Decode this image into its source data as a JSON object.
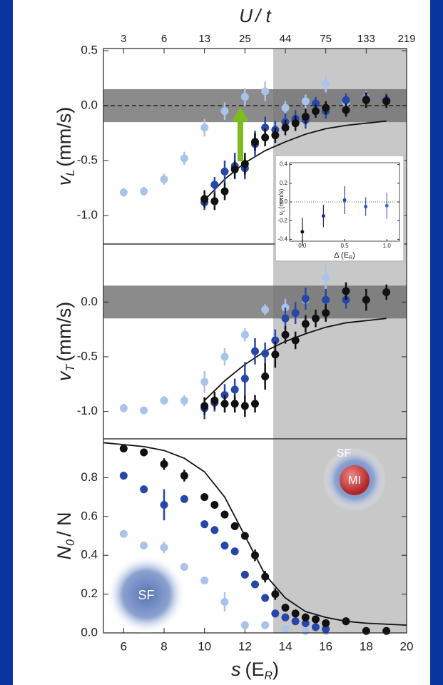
{
  "chart_data": [
    {
      "type": "scatter",
      "x2_label": "U",
      "x2_label_end": "/ t",
      "x2ticks": [
        {
          "value": 6,
          "label": "3"
        },
        {
          "value": 8,
          "label": "6"
        },
        {
          "value": 10,
          "label": "13"
        },
        {
          "value": 12,
          "label": "25"
        },
        {
          "value": 14,
          "label": "44"
        },
        {
          "value": 16,
          "label": "75"
        },
        {
          "value": 18,
          "label": "133"
        },
        {
          "value": 20,
          "label": "219"
        }
      ],
      "y_label": [
        "v",
        "L",
        "(mm/s)"
      ],
      "xlim": [
        5,
        20
      ],
      "ylim": [
        -1.26,
        0.52
      ],
      "yticks": [
        0.5,
        {
          "value": 0,
          "label": "0.0"
        },
        -0.5,
        {
          "value": -1,
          "label": "-1.0"
        }
      ],
      "shade_from": 13.4,
      "band": [
        -0.15,
        0.15
      ],
      "reference": 0,
      "series": [
        {
          "color": "#a9c3ea",
          "x": [
            6,
            7,
            8,
            9,
            10,
            11,
            12,
            13,
            14,
            15,
            16,
            17,
            18
          ],
          "values": [
            -0.79,
            -0.78,
            -0.67,
            -0.48,
            -0.2,
            -0.05,
            0.08,
            0.13,
            -0.02,
            0.04,
            0.2,
            0.03,
            0.07
          ],
          "errors": [
            0.04,
            0.04,
            0.05,
            0.06,
            0.08,
            0.08,
            0.08,
            0.09,
            0.06,
            0.06,
            0.08,
            0.05,
            0.06
          ]
        },
        {
          "color": "#2747a8",
          "x": [
            10,
            10.5,
            11,
            11.5,
            12,
            12.5,
            13,
            13.5,
            14,
            14.5,
            15,
            15.5,
            16,
            17,
            18,
            19
          ],
          "values": [
            -0.88,
            -0.72,
            -0.6,
            -0.55,
            -0.57,
            -0.35,
            -0.2,
            -0.22,
            -0.15,
            -0.12,
            -0.13,
            0.02,
            -0.05,
            0.05,
            0.06,
            0.05
          ],
          "errors": [
            0.07,
            0.07,
            0.1,
            0.12,
            0.1,
            0.12,
            0.1,
            0.08,
            0.08,
            0.08,
            0.08,
            0.06,
            0.07,
            0.06,
            0.06,
            0.06
          ]
        },
        {
          "color": "#111111",
          "x": [
            10,
            10.5,
            11,
            11.5,
            12,
            12.5,
            13,
            13.5,
            14,
            14.5,
            15,
            15.5,
            16,
            17,
            18,
            19
          ],
          "values": [
            -0.85,
            -0.87,
            -0.78,
            -0.58,
            -0.53,
            -0.33,
            -0.29,
            -0.27,
            -0.2,
            -0.16,
            -0.1,
            -0.05,
            -0.02,
            -0.04,
            0.05,
            0.04
          ],
          "errors": [
            0.08,
            0.08,
            0.08,
            0.08,
            0.1,
            0.08,
            0.08,
            0.07,
            0.07,
            0.07,
            0.07,
            0.06,
            0.06,
            0.06,
            0.07,
            0.06
          ]
        }
      ],
      "curve": {
        "x": [
          10,
          11,
          12,
          13,
          14,
          15,
          16,
          17,
          18,
          19
        ],
        "values": [
          -0.86,
          -0.67,
          -0.52,
          -0.41,
          -0.33,
          -0.26,
          -0.21,
          -0.18,
          -0.16,
          -0.14
        ]
      }
    },
    {
      "type": "scatter",
      "y_label": [
        "v",
        "T",
        "(mm/s)"
      ],
      "xlim": [
        5,
        20
      ],
      "ylim": [
        -1.25,
        0.53
      ],
      "yticks": [
        {
          "value": 0,
          "label": "0.0"
        },
        -0.5,
        {
          "value": -1,
          "label": "-1.0"
        }
      ],
      "shade_from": 13.4,
      "band": [
        -0.15,
        0.15
      ],
      "series": [
        {
          "color": "#a9c3ea",
          "x": [
            6,
            7,
            8,
            9,
            10,
            11,
            12,
            13,
            14,
            15,
            16,
            17
          ],
          "values": [
            -0.97,
            -0.99,
            -0.9,
            -0.9,
            -0.73,
            -0.5,
            -0.3,
            -0.07,
            -0.05,
            0.02,
            0.22,
            0.1
          ],
          "errors": [
            0.04,
            0.03,
            0.04,
            0.05,
            0.1,
            0.08,
            0.06,
            0.05,
            0.08,
            0.08,
            0.12,
            0.08
          ]
        },
        {
          "color": "#2747a8",
          "x": [
            10,
            10.5,
            11,
            11.5,
            12,
            12.5,
            13,
            13.5,
            14,
            14.5,
            15,
            16,
            17
          ],
          "values": [
            -0.97,
            -0.92,
            -0.85,
            -0.8,
            -0.7,
            -0.45,
            -0.47,
            -0.35,
            -0.15,
            -0.1,
            0.03,
            0.02,
            0.02
          ],
          "errors": [
            0.1,
            0.08,
            0.1,
            0.1,
            0.15,
            0.12,
            0.1,
            0.1,
            0.1,
            0.1,
            0.1,
            0.1,
            0.08
          ]
        },
        {
          "color": "#111111",
          "x": [
            10,
            10.5,
            11,
            11.5,
            12,
            12.5,
            13,
            13.5,
            14,
            14.5,
            15,
            15.5,
            16,
            17,
            18,
            19
          ],
          "values": [
            -0.95,
            -0.9,
            -0.93,
            -0.93,
            -0.95,
            -0.93,
            -0.68,
            -0.48,
            -0.3,
            -0.35,
            -0.2,
            -0.15,
            -0.1,
            0.1,
            0.02,
            0.09
          ],
          "errors": [
            0.08,
            0.08,
            0.08,
            0.08,
            0.1,
            0.08,
            0.12,
            0.12,
            0.08,
            0.08,
            0.08,
            0.08,
            0.08,
            0.08,
            0.1,
            0.07
          ]
        }
      ],
      "curve": {
        "x": [
          10,
          11,
          12,
          13,
          14,
          15,
          16,
          17,
          18,
          19
        ],
        "values": [
          -0.9,
          -0.72,
          -0.57,
          -0.45,
          -0.36,
          -0.29,
          -0.23,
          -0.19,
          -0.17,
          -0.15
        ]
      }
    },
    {
      "type": "scatter",
      "y_label": [
        "N",
        "0",
        "/ N"
      ],
      "x_label": [
        "s",
        "(E",
        "R",
        ")"
      ],
      "xlim": [
        5,
        20
      ],
      "ylim": [
        0,
        1.0
      ],
      "xticks": [
        6,
        8,
        10,
        12,
        14,
        16,
        18,
        20
      ],
      "yticks": [
        {
          "value": 0,
          "label": "0.0"
        },
        0.2,
        0.4,
        0.6,
        0.8
      ],
      "shade_from": 13.4,
      "annotations": [
        "SF",
        "SF",
        "MI"
      ],
      "series": [
        {
          "color": "#a9c3ea",
          "x": [
            6,
            7,
            8,
            9,
            10,
            11,
            12,
            13,
            14,
            15,
            16
          ],
          "values": [
            0.51,
            0.45,
            0.44,
            0.34,
            0.27,
            0.16,
            0.04,
            0.04,
            0.02,
            0.01,
            0.01
          ],
          "errors": [
            0.02,
            0.02,
            0.03,
            0.02,
            0.02,
            0.05,
            0.02,
            0.02,
            0.02,
            0.02,
            0.02
          ]
        },
        {
          "color": "#2747a8",
          "x": [
            6,
            7,
            8,
            9,
            10,
            10.5,
            11,
            11.5,
            12,
            12.5,
            13,
            13.5,
            14,
            14.5,
            15,
            15.5,
            16
          ],
          "values": [
            0.81,
            0.74,
            0.66,
            0.69,
            0.56,
            0.53,
            0.45,
            0.42,
            0.3,
            0.25,
            0.18,
            0.1,
            0.08,
            0.06,
            0.05,
            0.03,
            0.02
          ],
          "errors": [
            0.02,
            0.02,
            0.08,
            0.02,
            0.02,
            0.02,
            0.02,
            0.02,
            0.02,
            0.02,
            0.02,
            0.02,
            0.02,
            0.02,
            0.02,
            0.02,
            0.02
          ]
        },
        {
          "color": "#111111",
          "x": [
            6,
            7,
            8,
            9,
            10,
            10.5,
            11,
            11.5,
            12,
            12.5,
            13,
            13.5,
            14,
            14.5,
            15,
            15.5,
            16,
            17,
            18,
            19
          ],
          "values": [
            0.95,
            0.93,
            0.87,
            0.81,
            0.7,
            0.66,
            0.61,
            0.55,
            0.5,
            0.4,
            0.29,
            0.2,
            0.13,
            0.1,
            0.08,
            0.07,
            0.05,
            0.06,
            0.01,
            0.01
          ],
          "errors": [
            0.02,
            0.02,
            0.03,
            0.03,
            0.02,
            0.02,
            0.02,
            0.02,
            0.02,
            0.03,
            0.03,
            0.03,
            0.02,
            0.02,
            0.02,
            0.02,
            0.02,
            0.02,
            0.01,
            0.01
          ]
        }
      ],
      "curve": {
        "x": [
          5,
          6,
          7,
          8,
          9,
          10,
          11,
          12,
          13,
          14,
          15,
          16,
          17,
          18,
          19,
          20
        ],
        "values": [
          0.98,
          0.97,
          0.96,
          0.94,
          0.9,
          0.83,
          0.7,
          0.5,
          0.3,
          0.18,
          0.11,
          0.08,
          0.06,
          0.05,
          0.045,
          0.04
        ]
      }
    },
    {
      "type": "scatter",
      "y_label": [
        "v",
        "L",
        "(mm/s)"
      ],
      "x_label": [
        "Δ (E",
        "R",
        ")"
      ],
      "xlim": [
        -0.15,
        1.15
      ],
      "ylim": [
        -0.42,
        0.42
      ],
      "xticks": [
        {
          "value": 0,
          "label": "0.0"
        },
        0.5,
        {
          "value": 1,
          "label": "1.0"
        }
      ],
      "yticks": [
        0.4,
        0.2,
        {
          "value": 0,
          "label": "0.0"
        },
        -0.2,
        -0.4
      ],
      "reference": 0,
      "series": [
        {
          "colors": [
            "#111111",
            "#1f2f6e",
            "#2747a8",
            "#3656b8",
            "#4a6ac8"
          ],
          "x": [
            0,
            0.25,
            0.5,
            0.75,
            1.0
          ],
          "values": [
            -0.32,
            -0.15,
            0.02,
            -0.05,
            -0.04
          ],
          "errors": [
            0.15,
            0.12,
            0.15,
            0.1,
            0.14
          ]
        }
      ]
    }
  ]
}
